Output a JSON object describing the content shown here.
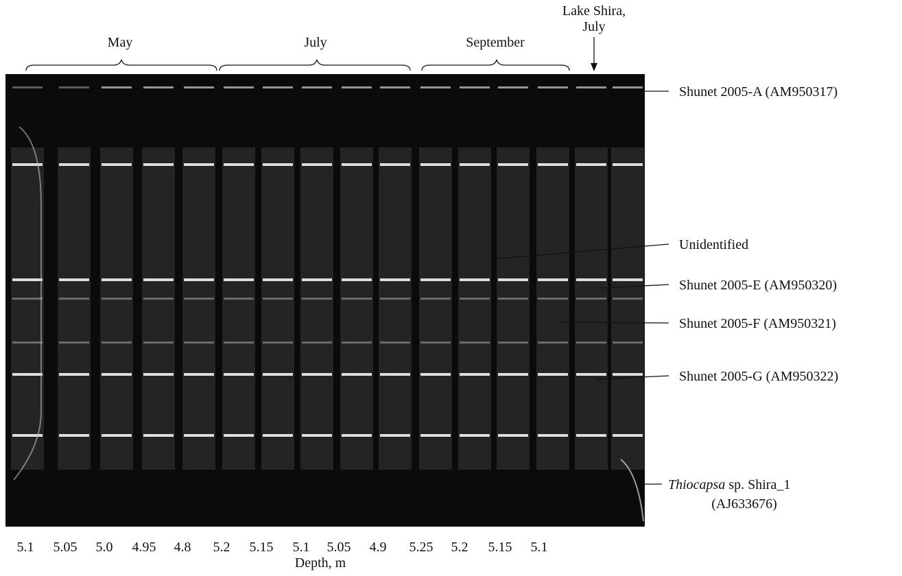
{
  "groups": [
    {
      "label": "May"
    },
    {
      "label": "July"
    },
    {
      "label": "September"
    }
  ],
  "reference_lane": {
    "lines": [
      "Lake Shira,",
      "July"
    ]
  },
  "lanes": [
    "5.1",
    "5.05",
    "5.0",
    "4.95",
    "4.8",
    "5.2",
    "5.15",
    "5.1",
    "5.05",
    "4.9",
    "5.25",
    "5.2",
    "5.15",
    "5.1"
  ],
  "x_label": "Depth, m",
  "bands": [
    {
      "label": "Shunet 2005-A (AM950317)"
    },
    {
      "label": "Unidentified"
    },
    {
      "label": "Shunet 2005-E (AM950320)"
    },
    {
      "label": "Shunet 2005-F (AM950321)"
    },
    {
      "label": "Shunet 2005-G (AM950322)"
    },
    {
      "italic": "Thiocapsa",
      "text": " sp. Shira_1",
      "line2": "(AJ633676)"
    }
  ]
}
